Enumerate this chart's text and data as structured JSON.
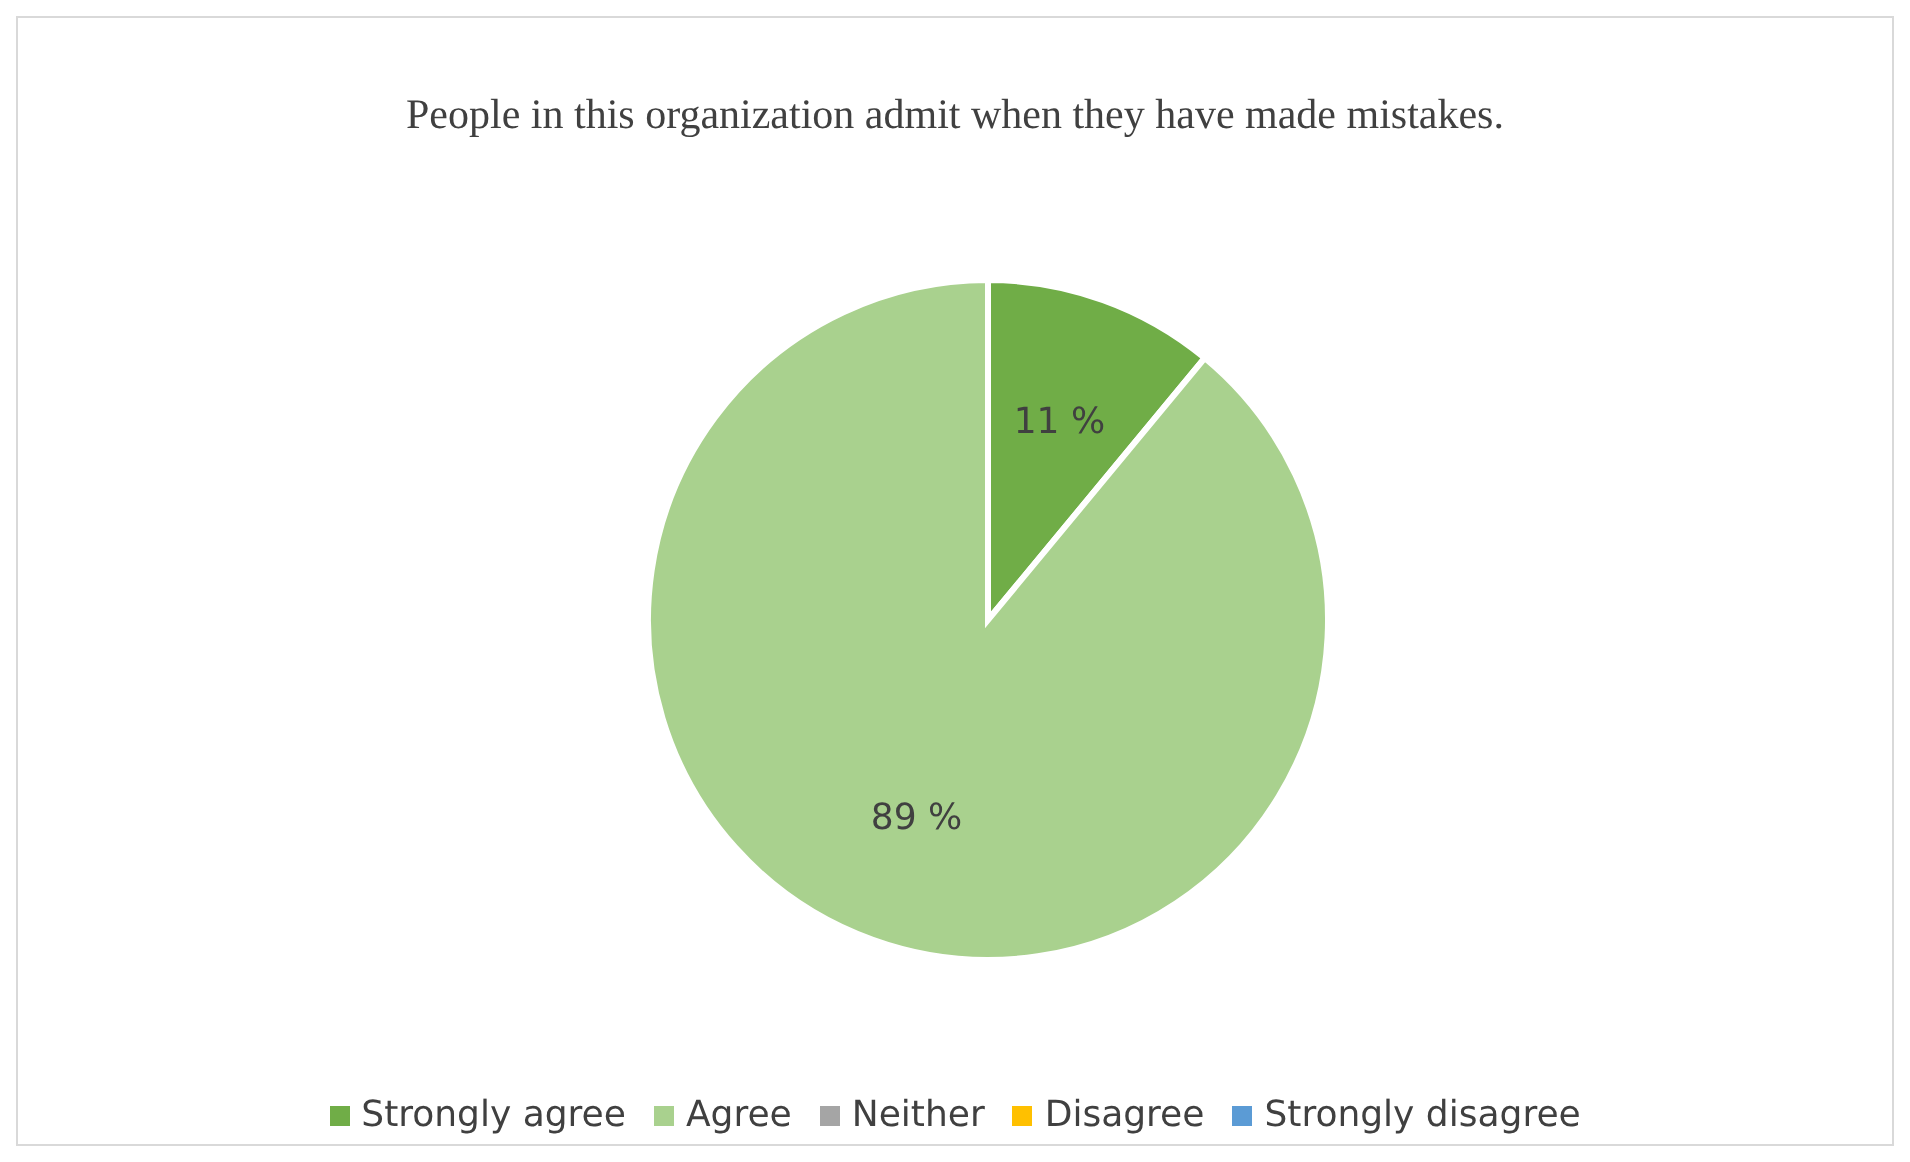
{
  "chart_data": {
    "type": "pie",
    "title": "People in this organization admit when they have made mistakes.",
    "categories": [
      "Strongly agree",
      "Agree",
      "Neither",
      "Disagree",
      "Strongly disagree"
    ],
    "values": [
      11,
      89,
      0,
      0,
      0
    ],
    "colors": [
      "#70ad47",
      "#a9d18e",
      "#a5a5a5",
      "#ffc000",
      "#5b9bd5"
    ],
    "value_labels": [
      "11 %",
      "89 %",
      null,
      null,
      null
    ],
    "legend": "bottom"
  }
}
